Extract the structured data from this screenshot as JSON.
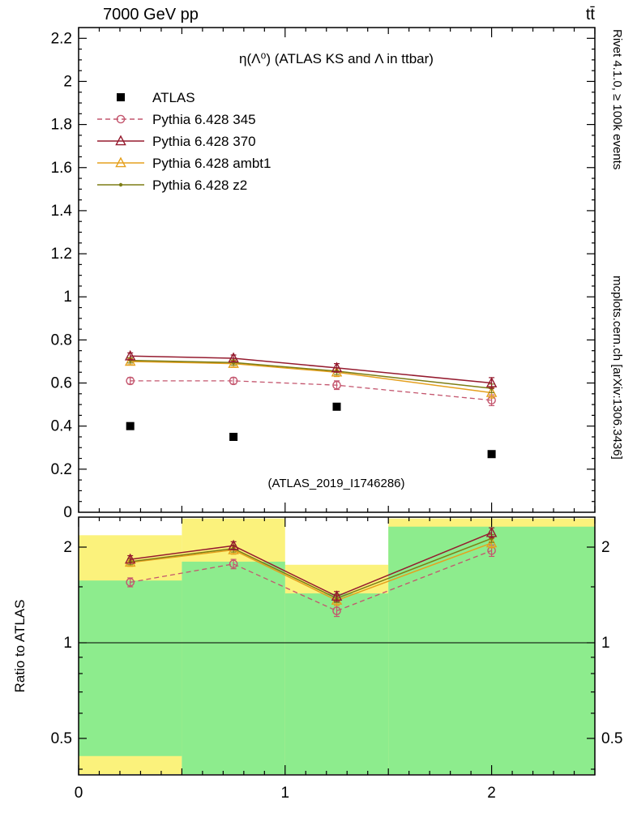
{
  "header": {
    "left": "7000 GeV pp",
    "right": "tt̄"
  },
  "side_labels": {
    "top_right": "Rivet 4.1.0, ≥ 100k events",
    "bottom_right": "mcplots.cern.ch [arXiv:1306.3436]"
  },
  "colors": {
    "band_yellow": "#fbf27c",
    "band_green": "#8dec8d",
    "atlas": "#000000",
    "p345": "#c4566e",
    "p370": "#951b2f",
    "ambt1": "#e5a01e",
    "z2": "#7d7d15",
    "watermark": "#a8a8a8",
    "side_text": "#8a8a8a"
  },
  "chart_data": [
    {
      "type": "line",
      "title": "η(Λ⁰) (ATLAS KS and Λ in ttbar)",
      "watermark": "(ATLAS_2019_I1746286)",
      "x": [
        0.25,
        0.75,
        1.25,
        2.0
      ],
      "x_bins": [
        [
          0,
          0.5
        ],
        [
          0.5,
          1.0
        ],
        [
          1.0,
          1.5
        ],
        [
          1.5,
          2.5
        ]
      ],
      "xlim": [
        0,
        2.5
      ],
      "ylim": [
        0,
        2.25
      ],
      "xticks": [
        0,
        1,
        2
      ],
      "yticks": [
        0,
        0.2,
        0.4,
        0.6,
        0.8,
        1,
        1.2,
        1.4,
        1.6,
        1.8,
        2,
        2.2
      ],
      "grid": false,
      "legend_position": "upper-left-inside",
      "series": [
        {
          "name": "ATLAS",
          "marker": "filled-square",
          "line": "none",
          "color_key": "atlas",
          "values": [
            0.4,
            0.35,
            0.49,
            0.27
          ]
        },
        {
          "name": "Pythia 6.428 345",
          "marker": "open-circle",
          "line": "dashed",
          "color_key": "p345",
          "values": [
            0.61,
            0.61,
            0.59,
            0.52
          ],
          "errors": [
            0.015,
            0.015,
            0.02,
            0.025
          ]
        },
        {
          "name": "Pythia 6.428 370",
          "marker": "open-triangle",
          "line": "solid",
          "color_key": "p370",
          "values": [
            0.725,
            0.715,
            0.67,
            0.6
          ],
          "errors": [
            0.015,
            0.015,
            0.02,
            0.025
          ]
        },
        {
          "name": "Pythia 6.428 ambt1",
          "marker": "open-triangle",
          "line": "solid",
          "color_key": "ambt1",
          "values": [
            0.7,
            0.69,
            0.65,
            0.555
          ],
          "errors": [
            0.015,
            0.015,
            0.02,
            0.025
          ]
        },
        {
          "name": "Pythia 6.428 z2",
          "marker": "dot",
          "line": "solid",
          "color_key": "z2",
          "values": [
            0.705,
            0.695,
            0.655,
            0.575
          ],
          "errors": [
            0.012,
            0.012,
            0.015,
            0.02
          ]
        }
      ]
    },
    {
      "type": "ratio",
      "ylabel": "Ratio to ATLAS",
      "x": [
        0.25,
        0.75,
        1.25,
        2.0
      ],
      "xlim": [
        0,
        2.5
      ],
      "ylim": [
        0.386,
        2.46
      ],
      "yscale": "log",
      "yticks_labeled": [
        0.5,
        1,
        2
      ],
      "yticks_minor": [
        0.4,
        0.6,
        0.7,
        0.8,
        0.9,
        1.5
      ],
      "reference_line": 1,
      "series": [
        {
          "name": "Pythia 6.428 345",
          "values": [
            1.55,
            1.77,
            1.26,
            1.95
          ],
          "errors": [
            0.05,
            0.06,
            0.05,
            0.08
          ]
        },
        {
          "name": "Pythia 6.428 370",
          "values": [
            1.83,
            2.02,
            1.4,
            2.22
          ],
          "errors": [
            0.05,
            0.06,
            0.05,
            0.08
          ]
        },
        {
          "name": "Pythia 6.428 ambt1",
          "values": [
            1.79,
            1.96,
            1.36,
            2.06
          ],
          "errors": [
            0.05,
            0.06,
            0.05,
            0.07
          ]
        },
        {
          "name": "Pythia 6.428 z2",
          "values": [
            1.8,
            1.98,
            1.38,
            2.13
          ],
          "errors": [
            0.04,
            0.05,
            0.04,
            0.06
          ]
        }
      ],
      "bands": [
        {
          "bin": [
            0,
            0.5
          ],
          "yellow": [
            0.386,
            2.18
          ],
          "green": [
            0.44,
            1.57
          ]
        },
        {
          "bin": [
            0.5,
            1.0
          ],
          "yellow": [
            0.386,
            2.46
          ],
          "green": [
            0.386,
            1.8
          ]
        },
        {
          "bin": [
            1.0,
            1.5
          ],
          "yellow": [
            0.386,
            1.76
          ],
          "green": [
            0.386,
            1.43
          ]
        },
        {
          "bin": [
            1.5,
            2.5
          ],
          "yellow": [
            0.386,
            2.46
          ],
          "green": [
            0.386,
            2.32
          ]
        },
        {
          "bin": [
            2.47,
            2.5
          ],
          "yellow": [
            0.386,
            2.46
          ],
          "green": null
        }
      ]
    }
  ]
}
